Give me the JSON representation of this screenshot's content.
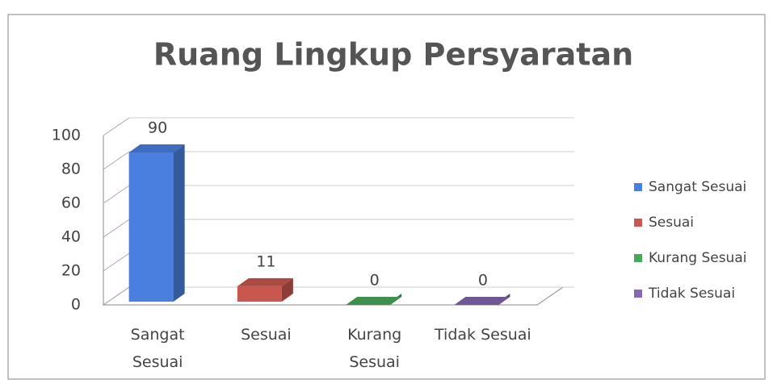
{
  "chart_data": {
    "type": "bar3d",
    "title": "Ruang Lingkup Persyaratan",
    "categories": [
      "Sangat Sesuai",
      "Sesuai",
      "Kurang Sesuai",
      "Tidak Sesuai"
    ],
    "values": [
      90,
      11,
      0,
      0
    ],
    "colors": [
      "#4a7fe0",
      "#c9574f",
      "#4aa85a",
      "#8566b0"
    ],
    "ylim": [
      0,
      100
    ],
    "yticks": [
      0,
      20,
      40,
      60,
      80,
      100
    ],
    "grid": true,
    "legend": "right"
  }
}
